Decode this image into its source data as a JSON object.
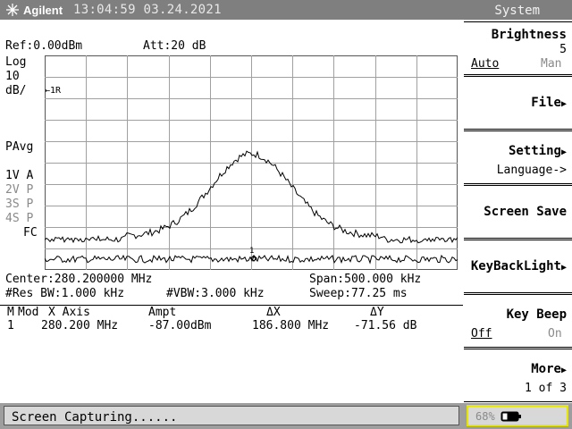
{
  "header": {
    "brand": "Agilent",
    "datetime": "13:04:59  03.24.2021",
    "menu_title": "System"
  },
  "screen": {
    "ref": "Ref:0.00dBm",
    "att": "Att:20 dB",
    "scale_lines": [
      "Log",
      "10",
      "dB/"
    ],
    "marker_ref": "1R",
    "detector": "PAvg",
    "traces": [
      {
        "label": "1V",
        "mode": "A"
      },
      {
        "label": "2V",
        "mode": "P"
      },
      {
        "label": "3S",
        "mode": "P"
      },
      {
        "label": "4S",
        "mode": "P"
      }
    ],
    "fc": "FC",
    "marker_point_label": "1",
    "center": "Center:280.200000 MHz",
    "span": "Span:500.000 kHz",
    "res_bw": "#Res BW:1.000 kHz",
    "vbw": "#VBW:3.000 kHz",
    "sweep": "Sweep:77.25 ms"
  },
  "marker_table": {
    "headers": {
      "m": "M",
      "mod": "Mod",
      "xaxis": "X Axis",
      "ampt": "Ampt",
      "dx": "ΔX",
      "dy": "ΔY"
    },
    "row": {
      "m": "1",
      "x": "280.200 MHz",
      "ampt": "-87.00dBm",
      "dx": "186.800 MHz",
      "dy": "-71.56 dB"
    }
  },
  "softkeys": {
    "brightness": {
      "label": "Brightness",
      "value": "5",
      "opt_on": "Auto",
      "opt_off": "Man"
    },
    "file": {
      "label": "File"
    },
    "setting": {
      "label": "Setting",
      "sub": "Language->"
    },
    "screen_save": {
      "label": "Screen Save"
    },
    "key_backlight": {
      "label": "KeyBackLight"
    },
    "key_beep": {
      "label": "Key Beep",
      "opt_on": "Off",
      "opt_off": "On"
    },
    "more": {
      "label": "More",
      "sub": "1 of 3"
    }
  },
  "status": {
    "text": "Screen Capturing......",
    "battery": "68%"
  },
  "colors": {
    "header_bg": "#7f7f7f",
    "status_bg": "#9e9e9e",
    "battery_border": "#e6e600"
  }
}
